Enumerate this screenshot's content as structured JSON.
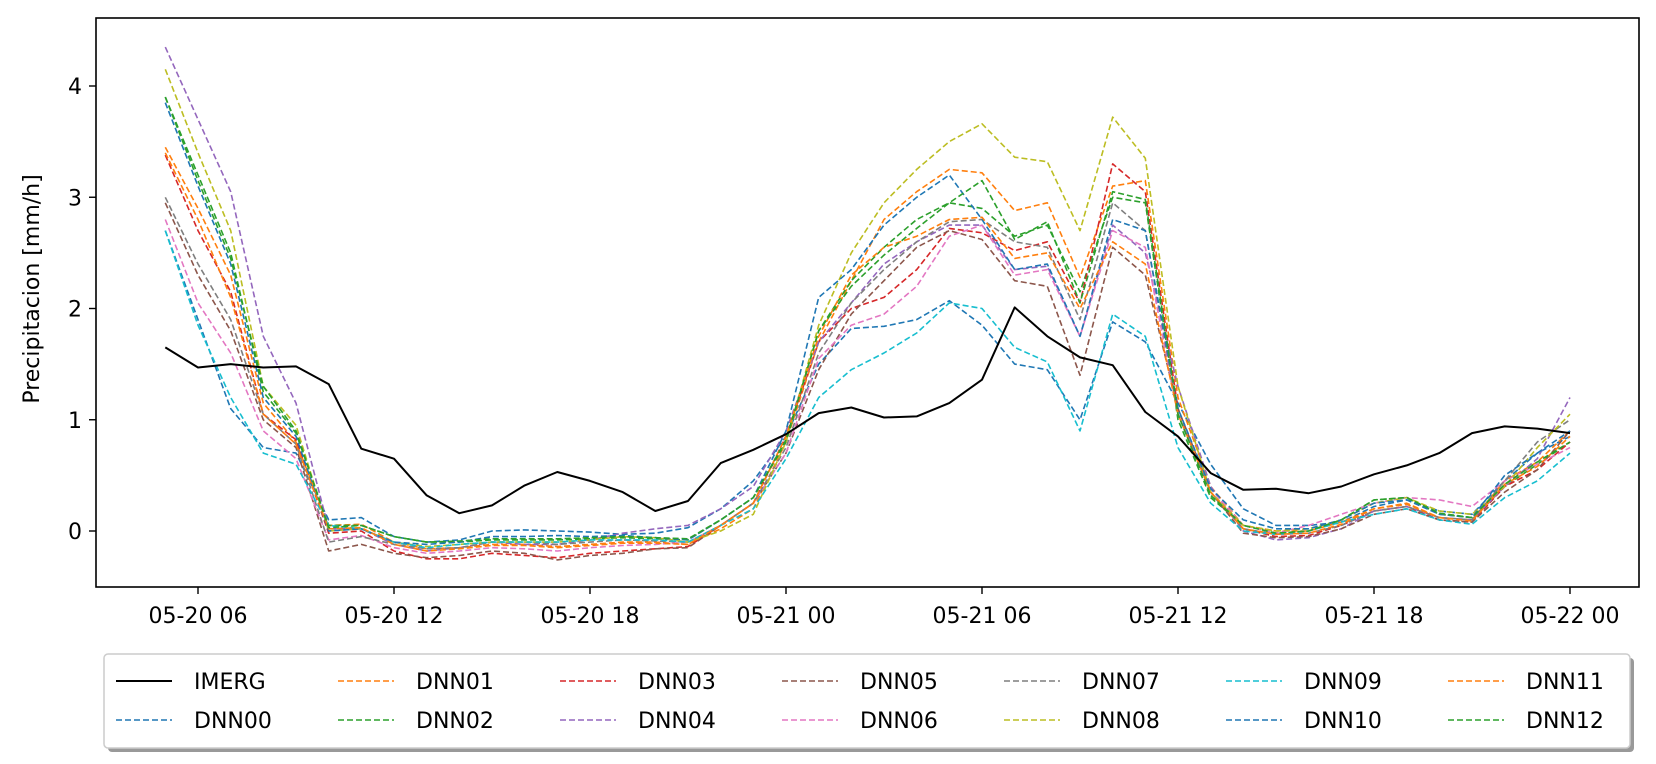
{
  "chart_data": {
    "type": "line",
    "title": "",
    "xlabel": "",
    "ylabel": "Precipitacion [mm/h]",
    "x_start": "2024-05-20 05:00",
    "x_step_hours": 1,
    "xlim": [
      "2024-05-20 01:00",
      "2024-05-22 03:00"
    ],
    "ylim": [
      -0.5,
      4.6
    ],
    "x_ticks": [
      {
        "t": 6,
        "label": "05-20 06"
      },
      {
        "t": 12,
        "label": "05-20 12"
      },
      {
        "t": 18,
        "label": "05-20 18"
      },
      {
        "t": 24,
        "label": "05-21 00"
      },
      {
        "t": 30,
        "label": "05-21 06"
      },
      {
        "t": 36,
        "label": "05-21 12"
      },
      {
        "t": 42,
        "label": "05-21 18"
      },
      {
        "t": 48,
        "label": "05-22 00"
      }
    ],
    "y_ticks": [
      0,
      1,
      2,
      3,
      4
    ],
    "grid": false,
    "legend": {
      "placement": "bottom-outside",
      "columns": 7
    },
    "series": [
      {
        "name": "IMERG",
        "color": "#000000",
        "dash": "solid",
        "values": [
          1.65,
          1.47,
          1.5,
          1.47,
          1.48,
          1.32,
          0.74,
          0.65,
          0.32,
          0.16,
          0.23,
          0.41,
          0.53,
          0.45,
          0.35,
          0.18,
          0.27,
          0.61,
          0.73,
          0.87,
          1.06,
          1.11,
          1.02,
          1.03,
          1.15,
          1.36,
          2.01,
          1.75,
          1.56,
          1.49,
          1.07,
          0.85,
          0.52,
          0.37,
          0.38,
          0.34,
          0.4,
          0.51,
          0.59,
          0.7,
          0.88,
          0.94,
          0.92,
          0.88
        ]
      },
      {
        "name": "DNN00",
        "color": "#1f77b4",
        "dash": "dashed",
        "values": [
          2.7,
          1.9,
          1.1,
          0.75,
          0.7,
          0.1,
          0.12,
          -0.05,
          -0.1,
          -0.08,
          0.0,
          0.01,
          0.0,
          -0.01,
          -0.03,
          -0.02,
          0.03,
          0.2,
          0.45,
          0.85,
          1.5,
          1.82,
          1.84,
          1.9,
          2.07,
          1.85,
          1.5,
          1.45,
          1.0,
          1.88,
          1.7,
          1.15,
          0.6,
          0.2,
          0.05,
          0.05,
          0.08,
          0.22,
          0.28,
          0.18,
          0.15,
          0.45,
          0.7,
          0.85
        ]
      },
      {
        "name": "DNN01",
        "color": "#ff7f0e",
        "dash": "dashed",
        "values": [
          3.45,
          2.9,
          2.3,
          1.15,
          0.8,
          0.05,
          0.06,
          -0.1,
          -0.16,
          -0.15,
          -0.12,
          -0.12,
          -0.14,
          -0.12,
          -0.1,
          -0.1,
          -0.12,
          0.02,
          0.2,
          0.8,
          1.7,
          2.25,
          2.8,
          3.05,
          3.25,
          3.22,
          2.88,
          2.95,
          2.28,
          3.1,
          3.15,
          1.2,
          0.4,
          0.05,
          0.0,
          0.0,
          0.08,
          0.2,
          0.25,
          0.12,
          0.1,
          0.45,
          0.62,
          0.9
        ]
      },
      {
        "name": "DNN02",
        "color": "#2ca02c",
        "dash": "dashed",
        "values": [
          3.9,
          3.2,
          2.5,
          1.25,
          0.88,
          0.05,
          0.05,
          -0.05,
          -0.1,
          -0.1,
          -0.08,
          -0.08,
          -0.08,
          -0.07,
          -0.06,
          -0.07,
          -0.08,
          0.1,
          0.3,
          0.8,
          1.8,
          2.25,
          2.55,
          2.8,
          2.95,
          2.9,
          2.65,
          2.75,
          2.15,
          3.0,
          2.95,
          1.0,
          0.3,
          0.05,
          -0.02,
          0.0,
          0.1,
          0.28,
          0.3,
          0.15,
          0.12,
          0.4,
          0.6,
          0.8
        ]
      },
      {
        "name": "DNN03",
        "color": "#d62728",
        "dash": "dashed",
        "values": [
          3.38,
          2.7,
          2.15,
          1.05,
          0.82,
          -0.02,
          0.0,
          -0.18,
          -0.25,
          -0.25,
          -0.2,
          -0.22,
          -0.24,
          -0.2,
          -0.18,
          -0.16,
          -0.14,
          0.05,
          0.25,
          0.85,
          1.7,
          2.0,
          2.1,
          2.35,
          2.72,
          2.68,
          2.52,
          2.6,
          2.05,
          3.3,
          3.05,
          1.1,
          0.35,
          0.02,
          -0.05,
          -0.04,
          0.05,
          0.18,
          0.22,
          0.1,
          0.08,
          0.4,
          0.55,
          0.8
        ]
      },
      {
        "name": "DNN04",
        "color": "#9467bd",
        "dash": "dashed",
        "values": [
          4.35,
          3.7,
          3.05,
          1.75,
          1.15,
          0.02,
          0.02,
          -0.12,
          -0.18,
          -0.15,
          -0.1,
          -0.12,
          -0.12,
          -0.08,
          -0.02,
          0.02,
          0.05,
          0.2,
          0.4,
          0.9,
          1.7,
          2.05,
          2.4,
          2.6,
          2.75,
          2.75,
          2.35,
          2.38,
          1.75,
          2.75,
          2.5,
          1.3,
          0.4,
          0.0,
          -0.08,
          -0.06,
          0.02,
          0.18,
          0.22,
          0.12,
          0.1,
          0.4,
          0.65,
          1.2
        ]
      },
      {
        "name": "DNN05",
        "color": "#8c564b",
        "dash": "dashed",
        "values": [
          2.95,
          2.3,
          1.8,
          1.0,
          0.75,
          -0.18,
          -0.12,
          -0.2,
          -0.24,
          -0.22,
          -0.18,
          -0.2,
          -0.26,
          -0.22,
          -0.2,
          -0.16,
          -0.15,
          0.05,
          0.25,
          0.7,
          1.45,
          1.95,
          2.25,
          2.55,
          2.7,
          2.62,
          2.25,
          2.2,
          1.4,
          2.55,
          2.3,
          1.1,
          0.35,
          -0.02,
          -0.06,
          -0.05,
          0.02,
          0.15,
          0.2,
          0.1,
          0.08,
          0.35,
          0.55,
          0.9
        ]
      },
      {
        "name": "DNN06",
        "color": "#e377c2",
        "dash": "dashed",
        "values": [
          2.8,
          2.05,
          1.6,
          0.9,
          0.65,
          -0.08,
          -0.04,
          -0.15,
          -0.2,
          -0.18,
          -0.15,
          -0.16,
          -0.18,
          -0.15,
          -0.13,
          -0.12,
          -0.1,
          0.05,
          0.25,
          0.7,
          1.55,
          1.85,
          1.95,
          2.2,
          2.65,
          2.75,
          2.3,
          2.35,
          1.75,
          2.7,
          2.55,
          1.05,
          0.38,
          0.05,
          -0.02,
          0.05,
          0.15,
          0.25,
          0.3,
          0.28,
          0.22,
          0.45,
          0.6,
          0.75
        ]
      },
      {
        "name": "DNN07",
        "color": "#7f7f7f",
        "dash": "dashed",
        "values": [
          3.0,
          2.4,
          1.9,
          1.05,
          0.78,
          -0.1,
          -0.05,
          -0.12,
          -0.16,
          -0.15,
          -0.1,
          -0.1,
          -0.12,
          -0.1,
          -0.08,
          -0.09,
          -0.1,
          0.05,
          0.25,
          0.75,
          1.6,
          2.05,
          2.35,
          2.6,
          2.78,
          2.8,
          2.6,
          2.55,
          1.9,
          2.95,
          2.7,
          1.05,
          0.35,
          0.02,
          -0.03,
          -0.02,
          0.05,
          0.18,
          0.22,
          0.12,
          0.1,
          0.45,
          0.8,
          1.0
        ]
      },
      {
        "name": "DNN08",
        "color": "#bcbd22",
        "dash": "dashed",
        "values": [
          4.15,
          3.4,
          2.7,
          1.3,
          0.95,
          0.0,
          0.02,
          -0.1,
          -0.14,
          -0.12,
          -0.1,
          -0.1,
          -0.1,
          -0.08,
          -0.05,
          -0.06,
          -0.1,
          0.0,
          0.15,
          0.8,
          1.85,
          2.5,
          2.95,
          3.25,
          3.5,
          3.66,
          3.36,
          3.32,
          2.7,
          3.72,
          3.35,
          1.3,
          0.35,
          0.05,
          0.0,
          0.02,
          0.1,
          0.25,
          0.3,
          0.18,
          0.15,
          0.4,
          0.75,
          1.05
        ]
      },
      {
        "name": "DNN09",
        "color": "#17becf",
        "dash": "dashed",
        "values": [
          2.7,
          1.85,
          1.2,
          0.7,
          0.6,
          0.05,
          0.02,
          -0.1,
          -0.15,
          -0.12,
          -0.1,
          -0.1,
          -0.1,
          -0.08,
          -0.08,
          -0.08,
          -0.1,
          0.05,
          0.2,
          0.65,
          1.2,
          1.45,
          1.6,
          1.78,
          2.05,
          2.0,
          1.65,
          1.52,
          0.9,
          1.95,
          1.75,
          0.75,
          0.25,
          0.0,
          -0.03,
          0.0,
          0.08,
          0.15,
          0.2,
          0.1,
          0.06,
          0.3,
          0.45,
          0.7
        ]
      },
      {
        "name": "DNN10",
        "color": "#1f77b4",
        "dash": "dashed",
        "values": [
          3.85,
          3.1,
          2.4,
          1.2,
          0.85,
          0.0,
          0.02,
          -0.1,
          -0.12,
          -0.1,
          -0.05,
          -0.05,
          -0.04,
          -0.05,
          -0.04,
          -0.06,
          -0.08,
          0.1,
          0.3,
          0.9,
          2.1,
          2.35,
          2.75,
          3.0,
          3.2,
          2.8,
          2.35,
          2.4,
          1.75,
          2.8,
          2.7,
          1.1,
          0.38,
          0.1,
          0.02,
          0.02,
          0.1,
          0.25,
          0.28,
          0.15,
          0.12,
          0.5,
          0.7,
          0.9
        ]
      },
      {
        "name": "DNN11",
        "color": "#ff7f0e",
        "dash": "dashed",
        "values": [
          3.4,
          2.8,
          2.1,
          1.05,
          0.78,
          0.02,
          0.03,
          -0.12,
          -0.18,
          -0.16,
          -0.13,
          -0.13,
          -0.15,
          -0.13,
          -0.11,
          -0.11,
          -0.12,
          0.05,
          0.25,
          0.85,
          1.75,
          2.3,
          2.55,
          2.65,
          2.8,
          2.82,
          2.45,
          2.5,
          2.0,
          2.6,
          2.4,
          1.05,
          0.35,
          0.02,
          -0.03,
          -0.02,
          0.06,
          0.2,
          0.24,
          0.12,
          0.09,
          0.42,
          0.58,
          0.85
        ]
      },
      {
        "name": "DNN12",
        "color": "#2ca02c",
        "dash": "dashed",
        "values": [
          3.9,
          3.15,
          2.45,
          1.3,
          0.9,
          0.03,
          0.05,
          -0.05,
          -0.1,
          -0.09,
          -0.07,
          -0.07,
          -0.07,
          -0.06,
          -0.05,
          -0.06,
          -0.07,
          0.1,
          0.3,
          0.82,
          1.8,
          2.2,
          2.48,
          2.72,
          2.95,
          3.15,
          2.62,
          2.78,
          2.05,
          3.05,
          2.98,
          1.05,
          0.32,
          0.05,
          -0.02,
          0.0,
          0.1,
          0.28,
          0.3,
          0.16,
          0.12,
          0.42,
          0.62,
          0.8
        ]
      }
    ]
  }
}
